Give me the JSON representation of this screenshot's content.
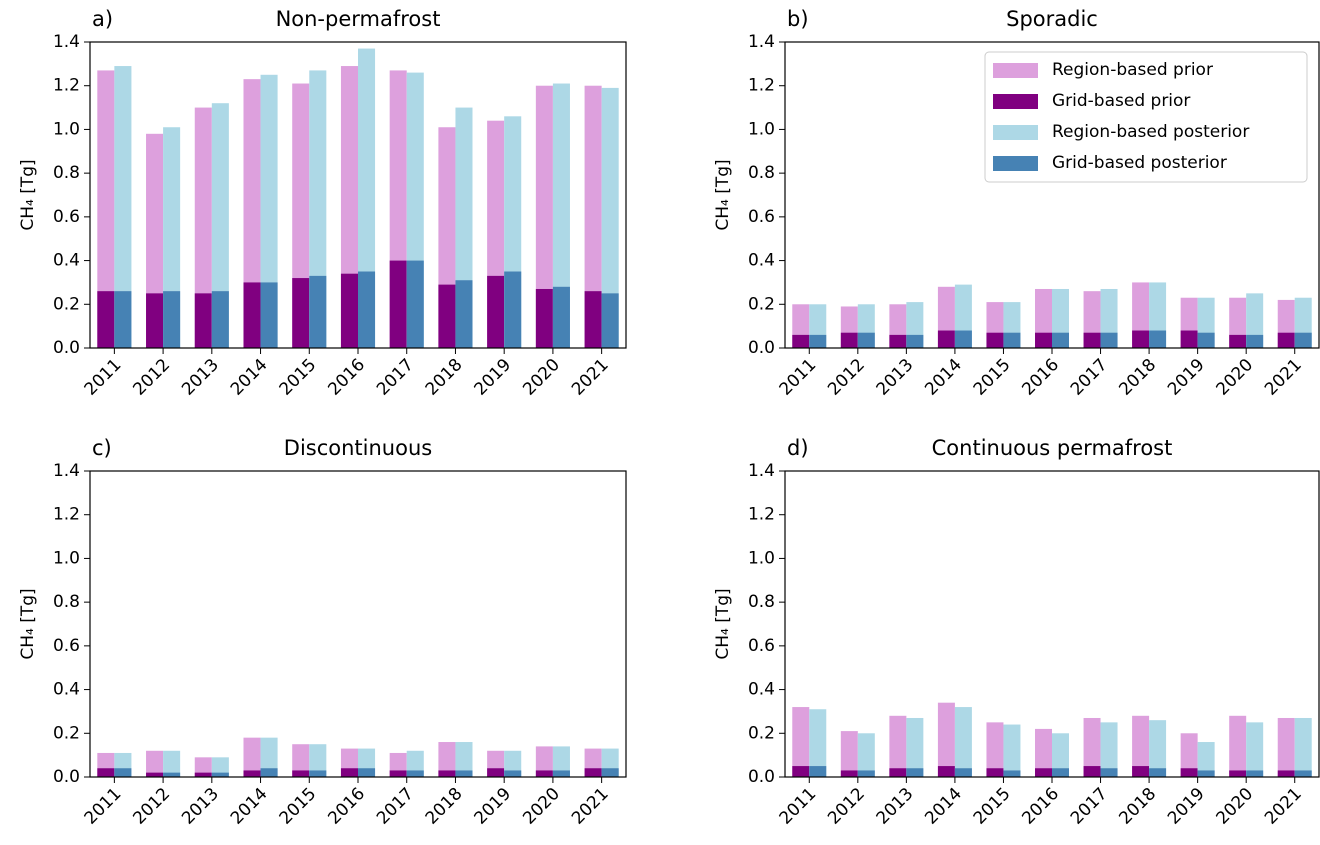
{
  "chart_data": [
    {
      "type": "bar",
      "panel": "a)",
      "title": "Non-permafrost",
      "ylabel": "CH₄ [Tg]",
      "categories": [
        "2011",
        "2012",
        "2013",
        "2014",
        "2015",
        "2016",
        "2017",
        "2018",
        "2019",
        "2020",
        "2021"
      ],
      "series": [
        {
          "color": "#dda0dd",
          "values": [
            1.27,
            0.98,
            1.1,
            1.23,
            1.21,
            1.29,
            1.27,
            1.01,
            1.04,
            1.2,
            1.2
          ]
        },
        {
          "color": "#800080",
          "values": [
            0.26,
            0.25,
            0.25,
            0.3,
            0.32,
            0.34,
            0.4,
            0.29,
            0.33,
            0.27,
            0.26
          ]
        },
        {
          "color": "#add8e6",
          "values": [
            1.29,
            1.01,
            1.12,
            1.25,
            1.27,
            1.37,
            1.26,
            1.1,
            1.06,
            1.21,
            1.19
          ]
        },
        {
          "color": "#4682b4",
          "values": [
            0.26,
            0.26,
            0.26,
            0.3,
            0.33,
            0.35,
            0.4,
            0.31,
            0.35,
            0.28,
            0.25
          ]
        }
      ],
      "ylim": [
        0,
        1.4
      ],
      "yticks": [
        {
          "value": 0,
          "label": "0.0"
        },
        0.2,
        0.4,
        0.6,
        0.8,
        {
          "value": 1,
          "label": "1.0"
        },
        1.2,
        1.4
      ]
    },
    {
      "type": "bar",
      "panel": "b)",
      "title": "Sporadic",
      "ylabel": "CH₄ [Tg]",
      "categories": [
        "2011",
        "2012",
        "2013",
        "2014",
        "2015",
        "2016",
        "2017",
        "2018",
        "2019",
        "2020",
        "2021"
      ],
      "series": [
        {
          "name": "Region-based prior",
          "color": "#dda0dd",
          "values": [
            0.2,
            0.19,
            0.2,
            0.28,
            0.21,
            0.27,
            0.26,
            0.3,
            0.23,
            0.23,
            0.22
          ]
        },
        {
          "name": "Grid-based prior",
          "color": "#800080",
          "values": [
            0.06,
            0.07,
            0.06,
            0.08,
            0.07,
            0.07,
            0.07,
            0.08,
            0.08,
            0.06,
            0.07
          ]
        },
        {
          "name": "Region-based posterior",
          "color": "#add8e6",
          "values": [
            0.2,
            0.2,
            0.21,
            0.29,
            0.21,
            0.27,
            0.27,
            0.3,
            0.23,
            0.25,
            0.23
          ]
        },
        {
          "name": "Grid-based posterior",
          "color": "#4682b4",
          "values": [
            0.06,
            0.07,
            0.06,
            0.08,
            0.07,
            0.07,
            0.07,
            0.08,
            0.07,
            0.06,
            0.07
          ]
        }
      ],
      "legend": "upper right",
      "ylim": [
        0,
        1.4
      ],
      "yticks": [
        {
          "value": 0,
          "label": "0.0"
        },
        0.2,
        0.4,
        0.6,
        0.8,
        {
          "value": 1,
          "label": "1.0"
        },
        1.2,
        1.4
      ]
    },
    {
      "type": "bar",
      "panel": "c)",
      "title": "Discontinuous",
      "ylabel": "CH₄ [Tg]",
      "categories": [
        "2011",
        "2012",
        "2013",
        "2014",
        "2015",
        "2016",
        "2017",
        "2018",
        "2019",
        "2020",
        "2021"
      ],
      "series": [
        {
          "color": "#dda0dd",
          "values": [
            0.11,
            0.12,
            0.09,
            0.18,
            0.15,
            0.13,
            0.11,
            0.16,
            0.12,
            0.14,
            0.13
          ]
        },
        {
          "color": "#800080",
          "values": [
            0.04,
            0.02,
            0.02,
            0.03,
            0.03,
            0.04,
            0.03,
            0.03,
            0.04,
            0.03,
            0.04
          ]
        },
        {
          "color": "#add8e6",
          "values": [
            0.11,
            0.12,
            0.09,
            0.18,
            0.15,
            0.13,
            0.12,
            0.16,
            0.12,
            0.14,
            0.13
          ]
        },
        {
          "color": "#4682b4",
          "values": [
            0.04,
            0.02,
            0.02,
            0.04,
            0.03,
            0.04,
            0.03,
            0.03,
            0.03,
            0.03,
            0.04
          ]
        }
      ],
      "ylim": [
        0,
        1.4
      ],
      "yticks": [
        {
          "value": 0,
          "label": "0.0"
        },
        0.2,
        0.4,
        0.6,
        0.8,
        {
          "value": 1,
          "label": "1.0"
        },
        1.2,
        1.4
      ]
    },
    {
      "type": "bar",
      "panel": "d)",
      "title": "Continuous permafrost",
      "ylabel": "CH₄ [Tg]",
      "categories": [
        "2011",
        "2012",
        "2013",
        "2014",
        "2015",
        "2016",
        "2017",
        "2018",
        "2019",
        "2020",
        "2021"
      ],
      "series": [
        {
          "color": "#dda0dd",
          "values": [
            0.32,
            0.21,
            0.28,
            0.34,
            0.25,
            0.22,
            0.27,
            0.28,
            0.2,
            0.28,
            0.27
          ]
        },
        {
          "color": "#800080",
          "values": [
            0.05,
            0.03,
            0.04,
            0.05,
            0.04,
            0.04,
            0.05,
            0.05,
            0.04,
            0.03,
            0.03
          ]
        },
        {
          "color": "#add8e6",
          "values": [
            0.31,
            0.2,
            0.27,
            0.32,
            0.24,
            0.2,
            0.25,
            0.26,
            0.16,
            0.25,
            0.27
          ]
        },
        {
          "color": "#4682b4",
          "values": [
            0.05,
            0.03,
            0.04,
            0.04,
            0.03,
            0.04,
            0.04,
            0.04,
            0.03,
            0.03,
            0.03
          ]
        }
      ],
      "ylim": [
        0,
        1.4
      ],
      "yticks": [
        {
          "value": 0,
          "label": "0.0"
        },
        0.2,
        0.4,
        0.6,
        0.8,
        {
          "value": 1,
          "label": "1.0"
        },
        1.2,
        1.4
      ]
    }
  ]
}
